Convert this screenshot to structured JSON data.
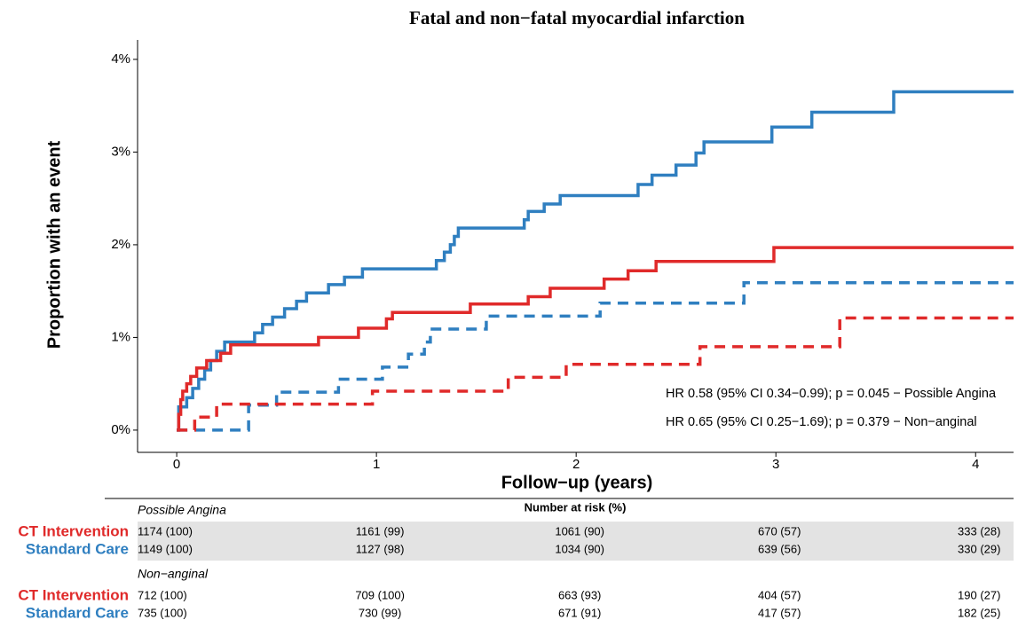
{
  "chart_data": {
    "type": "step",
    "title": "Fatal and non−fatal myocardial infarction",
    "x_label": "Follow−up (years)",
    "y_label": "Proportion with an event",
    "xlim": [
      -0.196,
      4.19
    ],
    "ylim": [
      -0.24,
      4.21
    ],
    "xticks": [
      0,
      1,
      2,
      3,
      4
    ],
    "yticks": [
      {
        "value": 0,
        "label": "0%"
      },
      {
        "value": 1,
        "label": "1%"
      },
      {
        "value": 2,
        "label": "2%"
      },
      {
        "value": 3,
        "label": "3%"
      },
      {
        "value": 4,
        "label": "4%"
      }
    ],
    "grid": false,
    "series": [
      {
        "color": "#2f7fc0",
        "linestyle": "solid",
        "x": [
          0,
          0.01,
          0.05,
          0.08,
          0.11,
          0.14,
          0.17,
          0.2,
          0.24,
          0.39,
          0.43,
          0.48,
          0.54,
          0.6,
          0.65,
          0.76,
          0.84,
          0.93,
          1.3,
          1.34,
          1.37,
          1.39,
          1.41,
          1.74,
          1.76,
          1.84,
          1.92,
          2.31,
          2.38,
          2.5,
          2.6,
          2.64,
          2.98,
          3.18,
          3.59
        ],
        "values": [
          0,
          0.25,
          0.35,
          0.45,
          0.55,
          0.65,
          0.75,
          0.85,
          0.95,
          1.05,
          1.14,
          1.22,
          1.31,
          1.39,
          1.48,
          1.57,
          1.65,
          1.74,
          1.83,
          1.92,
          2.0,
          2.09,
          2.18,
          2.27,
          2.36,
          2.44,
          2.53,
          2.65,
          2.75,
          2.86,
          2.99,
          3.11,
          3.27,
          3.43,
          3.65
        ]
      },
      {
        "color": "#e02a2a",
        "linestyle": "solid",
        "x": [
          0,
          0.01,
          0.02,
          0.03,
          0.05,
          0.07,
          0.1,
          0.15,
          0.22,
          0.27,
          0.71,
          0.91,
          1.05,
          1.08,
          1.47,
          1.76,
          1.87,
          2.14,
          2.26,
          2.4,
          2.99
        ],
        "values": [
          0,
          0.17,
          0.33,
          0.42,
          0.5,
          0.58,
          0.67,
          0.75,
          0.83,
          0.92,
          1.0,
          1.1,
          1.2,
          1.27,
          1.36,
          1.44,
          1.53,
          1.63,
          1.72,
          1.82,
          1.97
        ]
      },
      {
        "color": "#2f7fc0",
        "linestyle": "dashed",
        "x": [
          0,
          0.36,
          0.5,
          0.81,
          1.03,
          1.16,
          1.24,
          1.27,
          1.55,
          2.12,
          2.84
        ],
        "values": [
          0,
          0.27,
          0.41,
          0.55,
          0.68,
          0.82,
          0.95,
          1.09,
          1.23,
          1.37,
          1.59
        ]
      },
      {
        "color": "#e02a2a",
        "linestyle": "dashed",
        "x": [
          0,
          0.09,
          0.2,
          0.98,
          1.66,
          1.95,
          2.62,
          3.32
        ],
        "values": [
          0,
          0.14,
          0.28,
          0.42,
          0.57,
          0.71,
          0.9,
          1.21
        ]
      }
    ],
    "annotations": [
      "HR 0.58 (95% CI 0.34−0.99); p = 0.045 − Possible Angina",
      "HR 0.65 (95% CI 0.25−1.69); p = 0.379 − Non−anginal"
    ],
    "risk_table": {
      "title": "Number at risk (%)",
      "groups": [
        {
          "label": "Possible Angina",
          "rows": [
            {
              "name": "CT Intervention",
              "color": "#e02a2a",
              "values": [
                "1174 (100)",
                "1161 (99)",
                "1061 (90)",
                "670 (57)",
                "333 (28)"
              ]
            },
            {
              "name": "Standard Care",
              "color": "#2f7fc0",
              "values": [
                "1149 (100)",
                "1127 (98)",
                "1034 (90)",
                "639 (56)",
                "330 (29)"
              ]
            }
          ]
        },
        {
          "label": "Non−anginal",
          "rows": [
            {
              "name": "CT Intervention",
              "color": "#e02a2a",
              "values": [
                "712 (100)",
                "709 (100)",
                "663 (93)",
                "404 (57)",
                "190 (27)"
              ]
            },
            {
              "name": "Standard Care",
              "color": "#2f7fc0",
              "values": [
                "735 (100)",
                "730 (99)",
                "671 (91)",
                "417 (57)",
                "182 (25)"
              ]
            }
          ]
        }
      ]
    }
  }
}
